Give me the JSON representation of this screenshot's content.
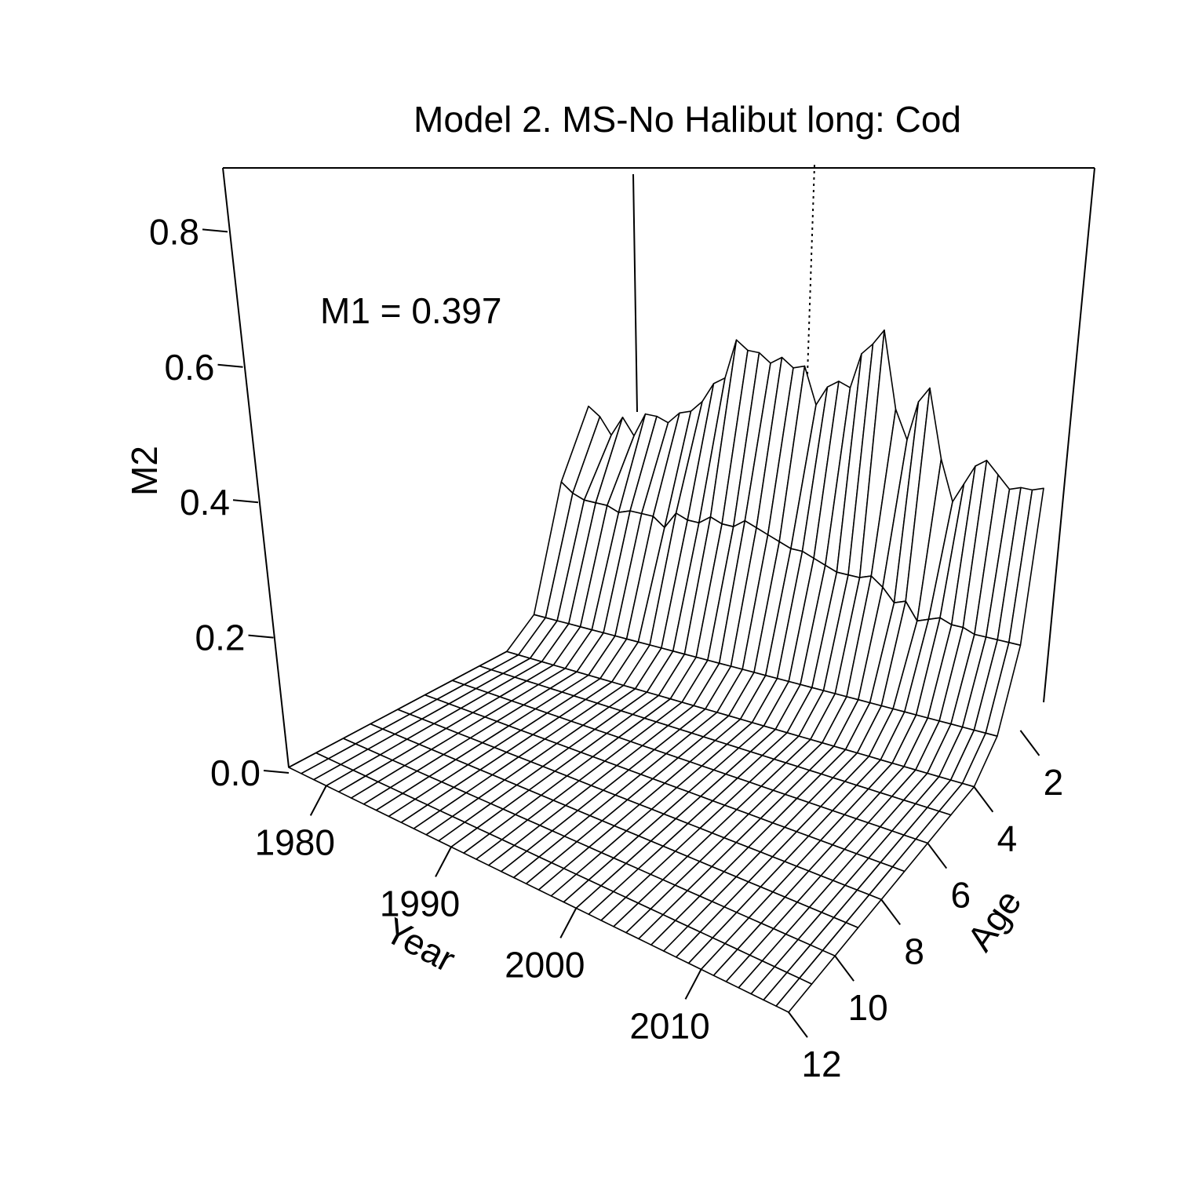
{
  "chart_data": {
    "type": "surface",
    "title": "Model 2. MS-No Halibut long: Cod",
    "annotation": "M1 = 0.397",
    "xlabel": "Year",
    "ylabel": "Age",
    "zlabel": "M2",
    "x_ticks": [
      "1980",
      "1990",
      "2000",
      "2010"
    ],
    "y_ticks": [
      "2",
      "4",
      "6",
      "8",
      "10",
      "12"
    ],
    "z_ticks": [
      "0.0",
      "0.2",
      "0.4",
      "0.6",
      "0.8"
    ],
    "x_range": [
      1977,
      2017
    ],
    "y_range": [
      1,
      12
    ],
    "z_range": [
      0,
      0.84
    ],
    "marker_year": 2004,
    "years": [
      1977,
      1978,
      1979,
      1980,
      1981,
      1982,
      1983,
      1984,
      1985,
      1986,
      1987,
      1988,
      1989,
      1990,
      1991,
      1992,
      1993,
      1994,
      1995,
      1996,
      1997,
      1998,
      1999,
      2000,
      2001,
      2002,
      2003,
      2004,
      2005,
      2006,
      2007,
      2008,
      2009,
      2010,
      2011,
      2012,
      2013,
      2014,
      2015,
      2016,
      2017
    ],
    "ages": [
      1,
      2,
      3,
      4,
      5,
      6,
      7,
      8,
      9,
      10,
      11,
      12
    ],
    "m2_age1": [
      0.5,
      0.48,
      0.44,
      0.49,
      0.45,
      0.51,
      0.51,
      0.5,
      0.53,
      0.54,
      0.57,
      0.62,
      0.64,
      0.74,
      0.72,
      0.72,
      0.7,
      0.72,
      0.7,
      0.71,
      0.62,
      0.67,
      0.69,
      0.68,
      0.77,
      0.8,
      0.84,
      0.65,
      0.58,
      0.68,
      0.72,
      0.55,
      0.45,
      0.5,
      0.55,
      0.57,
      0.54,
      0.51,
      0.52,
      0.52,
      0.53
    ],
    "m2_age2": [
      0.33,
      0.31,
      0.3,
      0.3,
      0.3,
      0.29,
      0.3,
      0.3,
      0.3,
      0.28,
      0.32,
      0.31,
      0.31,
      0.33,
      0.32,
      0.32,
      0.34,
      0.33,
      0.32,
      0.31,
      0.3,
      0.3,
      0.29,
      0.28,
      0.27,
      0.27,
      0.27,
      0.28,
      0.26,
      0.23,
      0.24,
      0.2,
      0.21,
      0.22,
      0.21,
      0.21,
      0.2,
      0.2,
      0.2,
      0.2,
      0.2
    ],
    "m2_age3": [
      0.05,
      0.05,
      0.05,
      0.05,
      0.05,
      0.05,
      0.05,
      0.05,
      0.05,
      0.05,
      0.05,
      0.05,
      0.05,
      0.05,
      0.05,
      0.05,
      0.05,
      0.05,
      0.05,
      0.05,
      0.05,
      0.05,
      0.05,
      0.05,
      0.05,
      0.05,
      0.05,
      0.05,
      0.05,
      0.05,
      0.05,
      0.05,
      0.05,
      0.05,
      0.05,
      0.05,
      0.05,
      0.05,
      0.05,
      0.05,
      0.05
    ]
  }
}
